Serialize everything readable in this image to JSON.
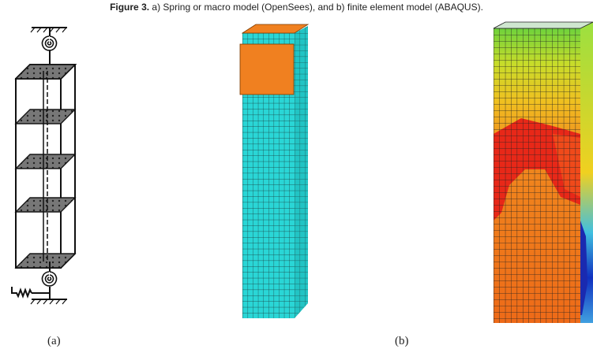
{
  "caption": {
    "label": "Figure 3.",
    "text": "a) Spring or macro model (OpenSees), and b) finite element model (ABAQUS)."
  },
  "panels": [
    {
      "label": "(a)"
    },
    {
      "label": "(b)"
    }
  ]
}
